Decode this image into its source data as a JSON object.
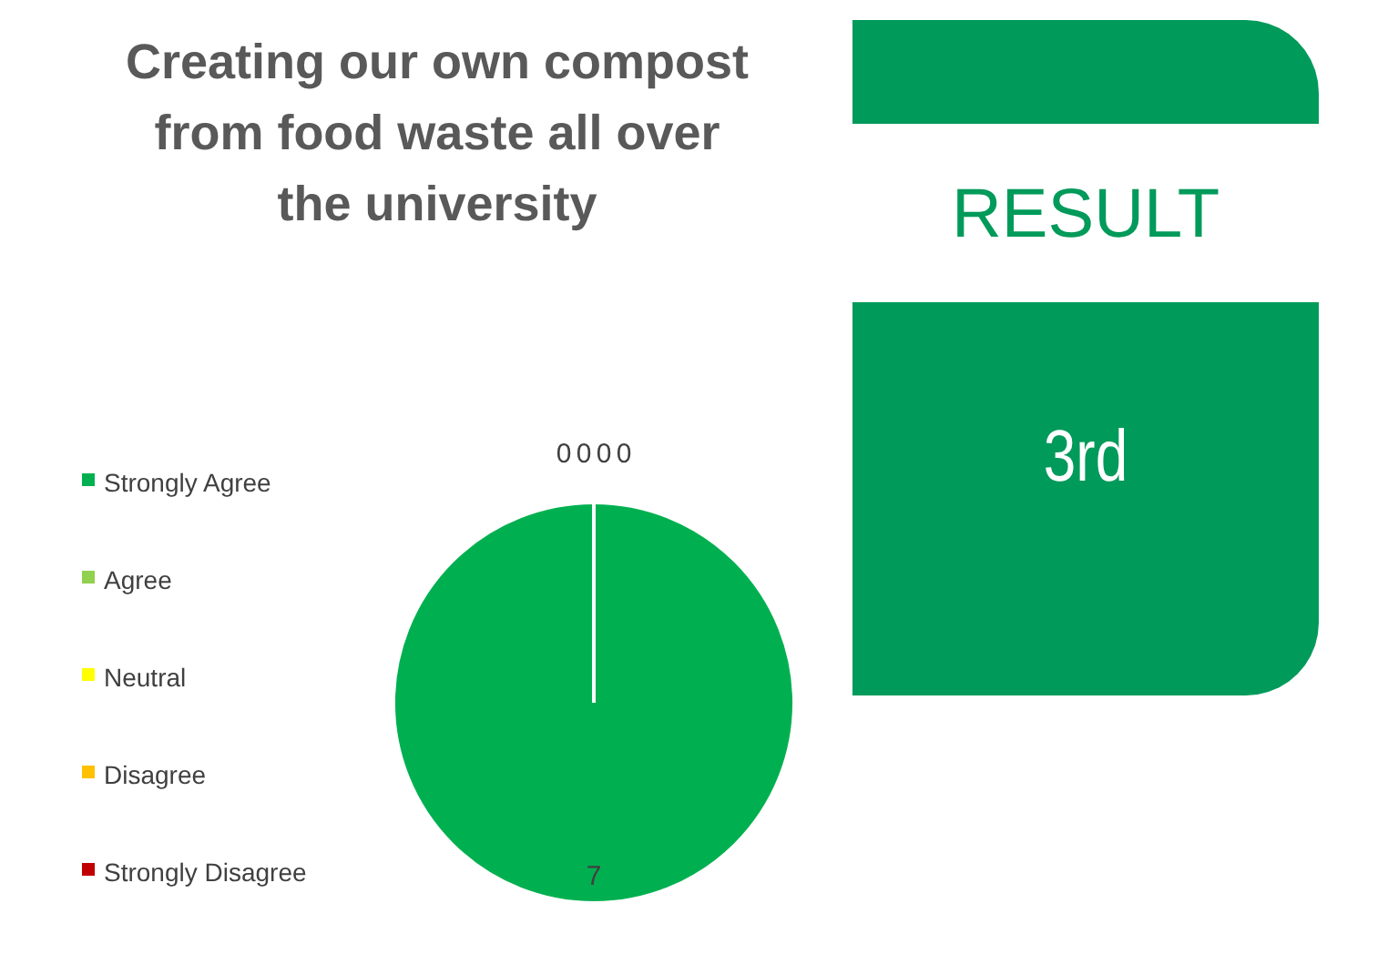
{
  "chart_data": {
    "type": "pie",
    "title": "Creating our own compost from food waste all over the university",
    "categories": [
      "Strongly Agree",
      "Agree",
      "Neutral",
      "Disagree",
      "Strongly Disagree"
    ],
    "values": [
      7,
      0,
      0,
      0,
      0
    ],
    "colors": [
      "#00b050",
      "#92d050",
      "#ffff00",
      "#ffc000",
      "#c00000"
    ],
    "value_labels": [
      "7",
      "0",
      "0",
      "0",
      "0"
    ],
    "legend": "left",
    "annotations": [
      "RESULT",
      "3rd"
    ]
  }
}
